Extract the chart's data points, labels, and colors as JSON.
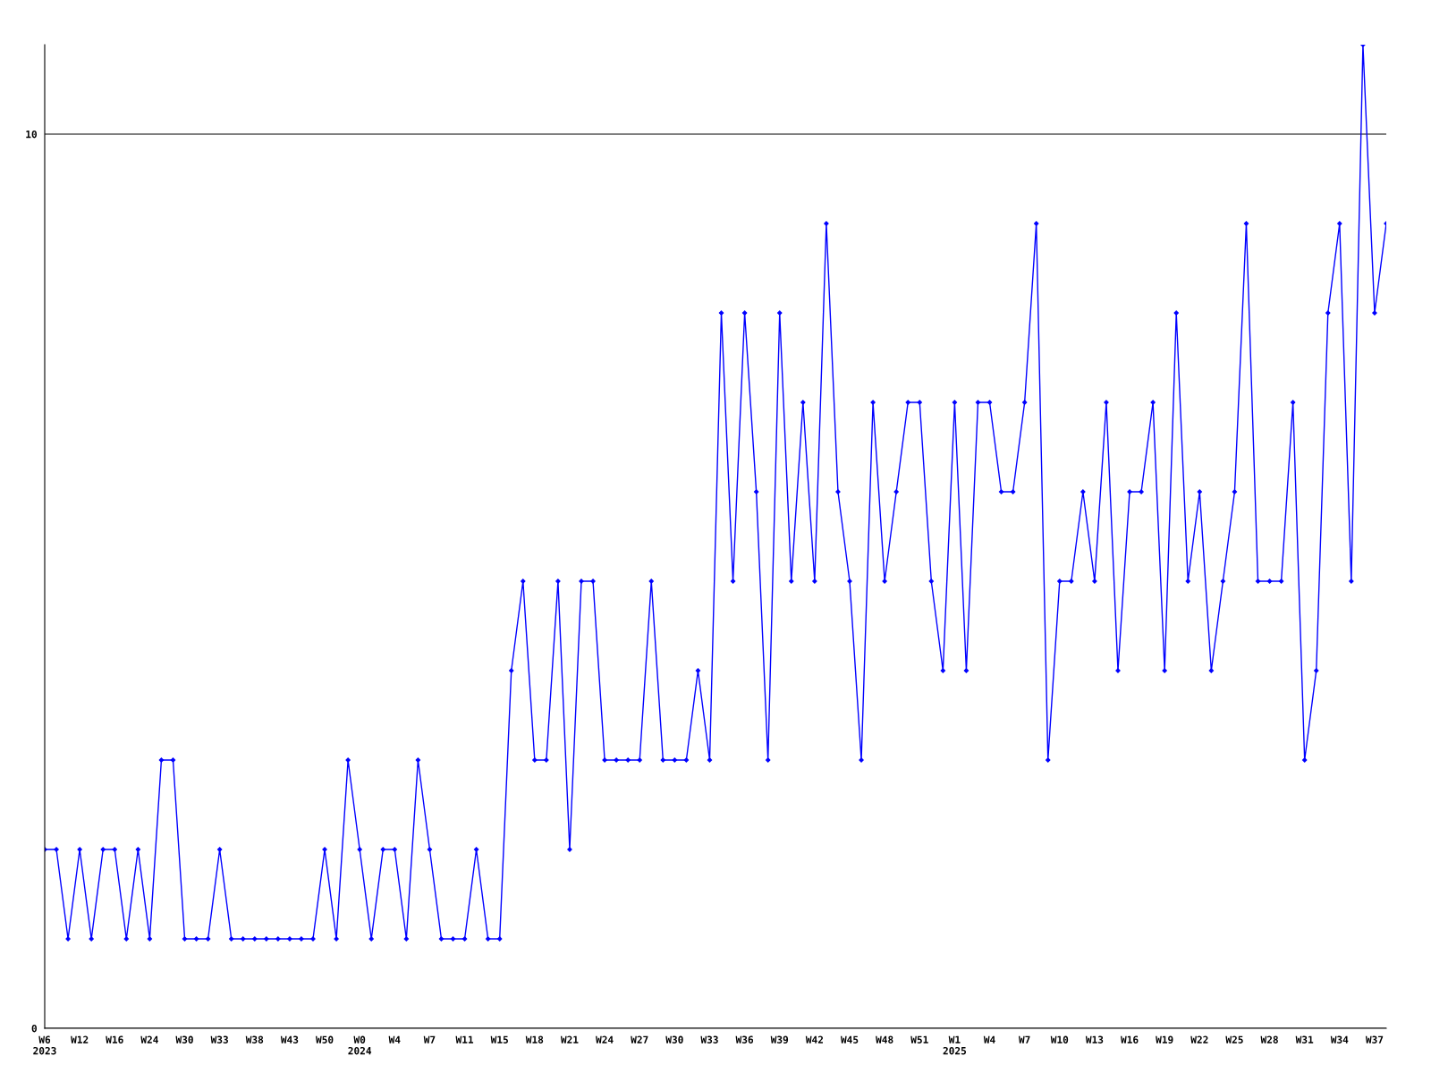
{
  "chart_data": {
    "type": "line",
    "categories": [
      "W6\n2023",
      null,
      null,
      "W12",
      null,
      null,
      "W16",
      null,
      null,
      "W24",
      null,
      null,
      "W30",
      null,
      null,
      "W33",
      null,
      null,
      "W38",
      null,
      null,
      "W43",
      null,
      null,
      "W50",
      null,
      null,
      "W0\n2024",
      null,
      null,
      "W4",
      null,
      null,
      "W7",
      null,
      null,
      "W11",
      null,
      null,
      "W15",
      null,
      null,
      "W18",
      null,
      null,
      "W21",
      null,
      null,
      "W24",
      null,
      null,
      "W27",
      null,
      null,
      "W30",
      null,
      null,
      "W33",
      null,
      null,
      "W36",
      null,
      null,
      "W39",
      null,
      null,
      "W42",
      null,
      null,
      "W45",
      null,
      null,
      "W48",
      null,
      null,
      "W51",
      null,
      null,
      "W1\n2025",
      null,
      null,
      "W4",
      null,
      null,
      "W7",
      null,
      null,
      "W10",
      null,
      null,
      "W13",
      null,
      null,
      "W16",
      null,
      null,
      "W19",
      null,
      null,
      "W22",
      null,
      null,
      "W25",
      null,
      null,
      "W28",
      null,
      null,
      "W31",
      null,
      null,
      "W34",
      null,
      null,
      "W37",
      null
    ],
    "series": [
      {
        "color": "#0000ff",
        "values": [
          2,
          2,
          1,
          2,
          1,
          2,
          2,
          1,
          2,
          1,
          3,
          3,
          1,
          1,
          1,
          2,
          1,
          1,
          1,
          1,
          1,
          1,
          1,
          1,
          2,
          1,
          3,
          2,
          1,
          2,
          2,
          1,
          3,
          2,
          1,
          1,
          1,
          2,
          1,
          1,
          4,
          5,
          3,
          3,
          5,
          2,
          5,
          5,
          3,
          3,
          3,
          3,
          5,
          3,
          3,
          3,
          4,
          3,
          8,
          5,
          8,
          6,
          3,
          8,
          5,
          7,
          5,
          9,
          6,
          5,
          3,
          7,
          5,
          6,
          7,
          7,
          5,
          4,
          7,
          4,
          7,
          7,
          6,
          6,
          7,
          9,
          3,
          5,
          5,
          6,
          5,
          7,
          4,
          6,
          6,
          7,
          4,
          8,
          5,
          6,
          4,
          5,
          6,
          9,
          5,
          5,
          5,
          7,
          3,
          4,
          8,
          9,
          5,
          11,
          8,
          9
        ]
      }
    ],
    "ylim": [
      0,
      11
    ],
    "yticks": [
      0,
      10
    ],
    "grid": "y",
    "marker": "diamond",
    "line_style": "solid"
  }
}
